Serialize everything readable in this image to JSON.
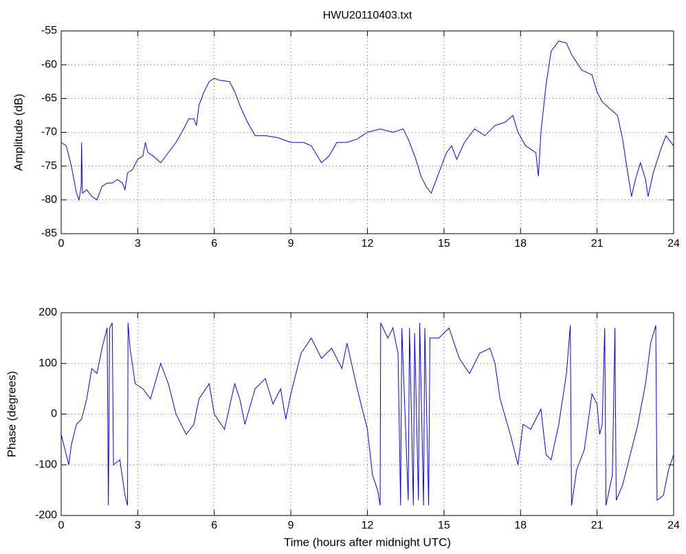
{
  "chart_data": [
    {
      "type": "line",
      "title": "HWU20110403.txt",
      "ylabel": "Amplitude (dB)",
      "color": "#0000ff",
      "grid": true,
      "xlim": [
        0,
        24
      ],
      "xticks": [
        0,
        3,
        6,
        9,
        12,
        15,
        18,
        21,
        24
      ],
      "ylim": [
        -85,
        -55
      ],
      "yticks": [
        -85,
        -80,
        -75,
        -70,
        -65,
        -60,
        -55
      ],
      "x": [
        0,
        0.2,
        0.4,
        0.6,
        0.7,
        0.78,
        0.8,
        0.83,
        1.0,
        1.2,
        1.4,
        1.6,
        1.8,
        2.0,
        2.2,
        2.4,
        2.5,
        2.6,
        2.8,
        3.0,
        3.2,
        3.3,
        3.4,
        3.6,
        3.9,
        4.2,
        4.5,
        4.8,
        5.0,
        5.2,
        5.3,
        5.4,
        5.6,
        5.8,
        6.0,
        6.2,
        6.6,
        6.8,
        7.0,
        7.3,
        7.6,
        8.0,
        8.5,
        9.0,
        9.5,
        9.8,
        10.2,
        10.5,
        10.8,
        11.2,
        11.6,
        12.0,
        12.5,
        13.0,
        13.4,
        13.6,
        13.9,
        14.1,
        14.3,
        14.5,
        14.7,
        14.9,
        15.1,
        15.3,
        15.5,
        15.8,
        16.2,
        16.6,
        17.0,
        17.4,
        17.7,
        17.9,
        18.2,
        18.4,
        18.6,
        18.7,
        18.8,
        19.0,
        19.2,
        19.5,
        19.8,
        20.0,
        20.4,
        20.8,
        21.0,
        21.2,
        21.5,
        21.8,
        22.0,
        22.2,
        22.35,
        22.5,
        22.7,
        22.9,
        23.0,
        23.2,
        23.5,
        23.7,
        24
      ],
      "values": [
        -71.5,
        -72,
        -75,
        -79,
        -80,
        -78,
        -71.5,
        -79,
        -78.5,
        -79.5,
        -80,
        -78,
        -77.5,
        -77.5,
        -77,
        -77.5,
        -78.5,
        -76,
        -75.5,
        -74,
        -73.5,
        -71.5,
        -73,
        -73.5,
        -74.5,
        -73,
        -71.5,
        -69.5,
        -68,
        -68,
        -69,
        -66,
        -64,
        -62.5,
        -62,
        -62.3,
        -62.5,
        -64,
        -66,
        -68.5,
        -70.5,
        -70.5,
        -70.8,
        -71.5,
        -71.5,
        -72,
        -74.5,
        -73.5,
        -71.5,
        -71.5,
        -71,
        -70,
        -69.5,
        -70,
        -69.5,
        -71,
        -74,
        -76.5,
        -78,
        -79,
        -77,
        -75,
        -73,
        -72,
        -74,
        -71.5,
        -69.5,
        -70.5,
        -69,
        -68.5,
        -67.5,
        -70,
        -72,
        -72.5,
        -73,
        -76.5,
        -70,
        -63,
        -58,
        -56.5,
        -56.8,
        -58.5,
        -60.8,
        -61.5,
        -64,
        -65.5,
        -66.5,
        -67.5,
        -71,
        -76,
        -79.5,
        -77,
        -74.5,
        -77,
        -79.5,
        -76,
        -72.5,
        -70.5,
        -72
      ]
    },
    {
      "type": "line",
      "xlabel": "Time (hours after midnight UTC)",
      "ylabel": "Phase (degrees)",
      "color": "#0000ff",
      "grid": true,
      "xlim": [
        0,
        24
      ],
      "xticks": [
        0,
        3,
        6,
        9,
        12,
        15,
        18,
        21,
        24
      ],
      "ylim": [
        -200,
        200
      ],
      "yticks": [
        -200,
        -100,
        0,
        100,
        200
      ],
      "x": [
        0,
        0.3,
        0.4,
        0.6,
        0.8,
        1.0,
        1.2,
        1.4,
        1.6,
        1.8,
        1.85,
        1.9,
        2.0,
        2.05,
        2.3,
        2.5,
        2.6,
        2.62,
        2.7,
        2.9,
        3.2,
        3.5,
        3.9,
        4.2,
        4.5,
        4.9,
        5.2,
        5.4,
        5.8,
        6.0,
        6.4,
        6.8,
        7.0,
        7.2,
        7.6,
        8.0,
        8.3,
        8.6,
        8.8,
        9.0,
        9.4,
        9.8,
        10.2,
        10.6,
        11.0,
        11.2,
        11.6,
        12.0,
        12.2,
        12.4,
        12.5,
        12.52,
        12.8,
        13.0,
        13.2,
        13.3,
        13.35,
        13.6,
        13.65,
        13.8,
        13.85,
        14.0,
        14.05,
        14.2,
        14.25,
        14.4,
        14.45,
        14.8,
        15.2,
        15.6,
        16.0,
        16.4,
        16.8,
        17.0,
        17.2,
        17.6,
        17.9,
        18.1,
        18.4,
        18.8,
        19.0,
        19.2,
        19.5,
        19.8,
        19.95,
        20.0,
        20.2,
        20.5,
        20.8,
        21.0,
        21.1,
        21.2,
        21.3,
        21.35,
        21.6,
        21.7,
        21.75,
        22.0,
        22.3,
        22.6,
        22.9,
        23.1,
        23.3,
        23.35,
        23.6,
        23.8,
        24
      ],
      "values": [
        -40,
        -100,
        -60,
        -20,
        -10,
        30,
        90,
        80,
        130,
        170,
        -180,
        170,
        180,
        -100,
        -90,
        -160,
        -180,
        180,
        130,
        60,
        50,
        30,
        100,
        60,
        0,
        -40,
        -20,
        30,
        60,
        0,
        -30,
        60,
        30,
        -20,
        50,
        70,
        20,
        50,
        -10,
        40,
        120,
        150,
        110,
        130,
        90,
        140,
        50,
        -30,
        -120,
        -150,
        -180,
        180,
        150,
        170,
        120,
        -180,
        170,
        -170,
        170,
        -180,
        160,
        -170,
        180,
        -180,
        170,
        -180,
        150,
        150,
        170,
        110,
        80,
        120,
        130,
        100,
        30,
        -40,
        -100,
        -20,
        -30,
        10,
        -80,
        -90,
        -20,
        80,
        175,
        -180,
        -110,
        -70,
        40,
        20,
        -40,
        -20,
        170,
        -180,
        -120,
        170,
        -170,
        -140,
        -80,
        -20,
        60,
        140,
        175,
        -170,
        -160,
        -110,
        -80
      ]
    }
  ]
}
